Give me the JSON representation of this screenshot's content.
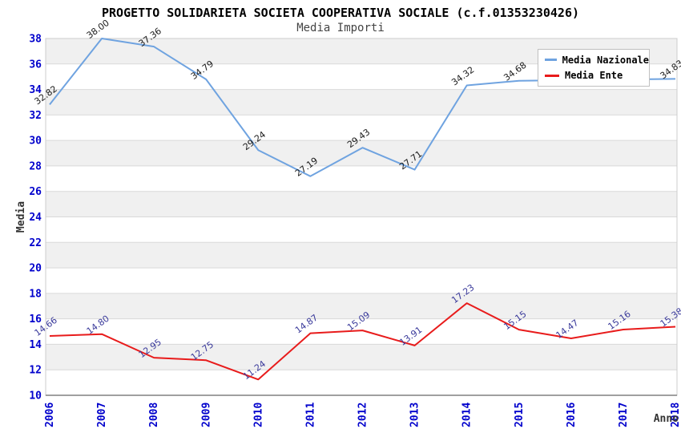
{
  "title": "PROGETTO SOLIDARIETA SOCIETA COOPERATIVA SOCIALE (c.f.01353230426)",
  "subtitle": "Media Importi",
  "y_axis": {
    "label": "Media",
    "ticks": [
      "38",
      "36",
      "34",
      "32",
      "30",
      "28",
      "26",
      "24",
      "22",
      "20",
      "18",
      "16",
      "14",
      "12",
      "10"
    ]
  },
  "x_axis": {
    "label": "Anno",
    "ticks": [
      "2006",
      "2007",
      "2008",
      "2009",
      "2010",
      "2011",
      "2012",
      "2013",
      "2014",
      "2015",
      "2016",
      "2017",
      "2018"
    ]
  },
  "legend": {
    "items": [
      {
        "label": "Media Nazionale",
        "color": "#6fa3e0"
      },
      {
        "label": "Media Ente",
        "color": "#e81b1b"
      }
    ]
  },
  "chart_data": {
    "type": "line",
    "title": "PROGETTO SOLIDARIETA SOCIETA COOPERATIVA SOCIALE (c.f.01353230426)",
    "subtitle": "Media Importi",
    "xlabel": "Anno",
    "ylabel": "Media",
    "x": [
      "2006",
      "2007",
      "2008",
      "2009",
      "2010",
      "2011",
      "2012",
      "2013",
      "2014",
      "2015",
      "2016",
      "2017",
      "2018"
    ],
    "ylim": [
      10,
      38
    ],
    "y_step": 2,
    "grid": true,
    "banded_background": true,
    "legend_position": "top-right",
    "series": [
      {
        "name": "Media Nazionale",
        "color": "#6fa3e0",
        "label_color": "#1a1a1a",
        "values": [
          32.82,
          38.0,
          37.36,
          34.79,
          29.24,
          27.19,
          29.43,
          27.71,
          34.32,
          34.68,
          null,
          null,
          34.83
        ],
        "point_labels": [
          "32.82",
          "38.00",
          "37.36",
          "34.79",
          "29.24",
          "27.19",
          "29.43",
          "27.71",
          "34.32",
          "34.68",
          null,
          null,
          "34.83"
        ]
      },
      {
        "name": "Media Ente",
        "color": "#e81b1b",
        "label_color": "#3a3a9b",
        "values": [
          14.66,
          14.8,
          12.95,
          12.75,
          11.24,
          14.87,
          15.09,
          13.91,
          17.23,
          15.15,
          14.47,
          15.16,
          15.38
        ],
        "point_labels": [
          "14.66",
          "14.80",
          "12.95",
          "12.75",
          "11.24",
          "14.87",
          "15.09",
          "13.91",
          "17.23",
          "15.15",
          "14.47",
          "15.16",
          "15.38"
        ]
      }
    ]
  },
  "colors": {
    "band_gray": "#f0f0f0",
    "gridline": "#d9d9d9",
    "plot_border": "#cccccc",
    "axis_line": "#808080",
    "tick_text": "#0000cc",
    "axis_title_text": "#333333",
    "title_text": "#000000",
    "subtitle_text": "#444444",
    "legend_border": "#c0c0c0",
    "legend_bg": "#ffffff"
  }
}
